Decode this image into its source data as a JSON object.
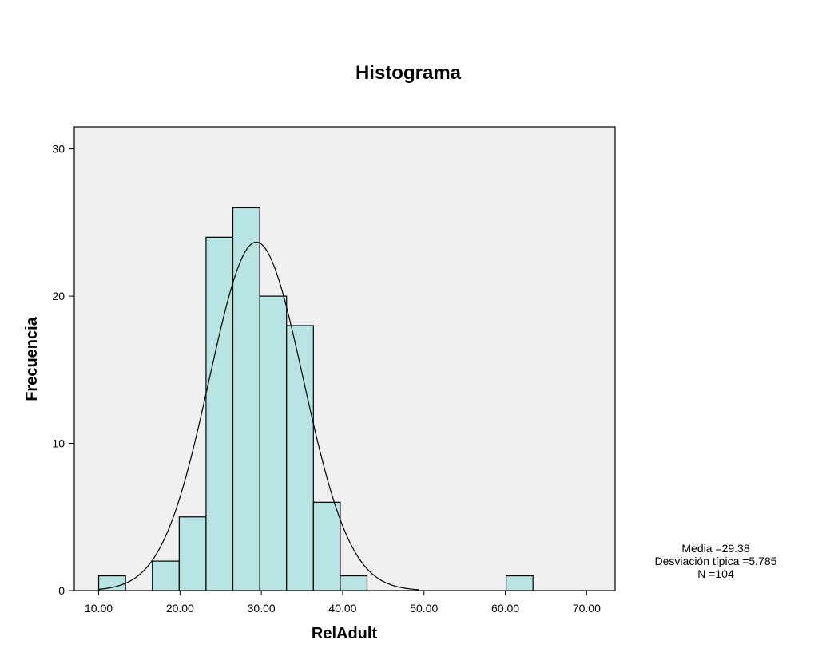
{
  "chart_data": {
    "type": "bar",
    "title": "Histograma",
    "xlabel": "RelAdult",
    "ylabel": "Frecuencia",
    "xlim": [
      7.0,
      73.5
    ],
    "ylim": [
      0,
      31.5
    ],
    "x_ticks": [
      10,
      20,
      30,
      40,
      50,
      60,
      70
    ],
    "x_tick_labels": [
      "10.00",
      "20.00",
      "30.00",
      "40.00",
      "50.00",
      "60.00",
      "70.00"
    ],
    "y_ticks": [
      0,
      10,
      20,
      30
    ],
    "y_tick_labels": [
      "0",
      "10",
      "20",
      "30"
    ],
    "bin_width": 3.3,
    "bins": [
      {
        "start": 10.0,
        "end": 13.3,
        "count": 1
      },
      {
        "start": 13.3,
        "end": 16.6,
        "count": 0
      },
      {
        "start": 16.6,
        "end": 19.9,
        "count": 2
      },
      {
        "start": 19.9,
        "end": 23.2,
        "count": 5
      },
      {
        "start": 23.2,
        "end": 26.5,
        "count": 24
      },
      {
        "start": 26.5,
        "end": 29.8,
        "count": 26
      },
      {
        "start": 29.8,
        "end": 33.1,
        "count": 20
      },
      {
        "start": 33.1,
        "end": 36.4,
        "count": 18
      },
      {
        "start": 36.4,
        "end": 39.7,
        "count": 6
      },
      {
        "start": 39.7,
        "end": 43.0,
        "count": 1
      },
      {
        "start": 60.1,
        "end": 63.4,
        "count": 1
      }
    ],
    "normal_curve": {
      "mean": 29.38,
      "sd": 5.785,
      "n": 104
    },
    "grid": false,
    "legend": "none"
  },
  "stats": {
    "mean_text": "Media =29.38",
    "sd_text": "Desviación típica =5.785",
    "n_text": "N =104"
  },
  "colors": {
    "bar_fill": "#b8e4e4",
    "bar_stroke": "#000000",
    "plot_background": "#f0f0f0",
    "curve": "#000000"
  }
}
